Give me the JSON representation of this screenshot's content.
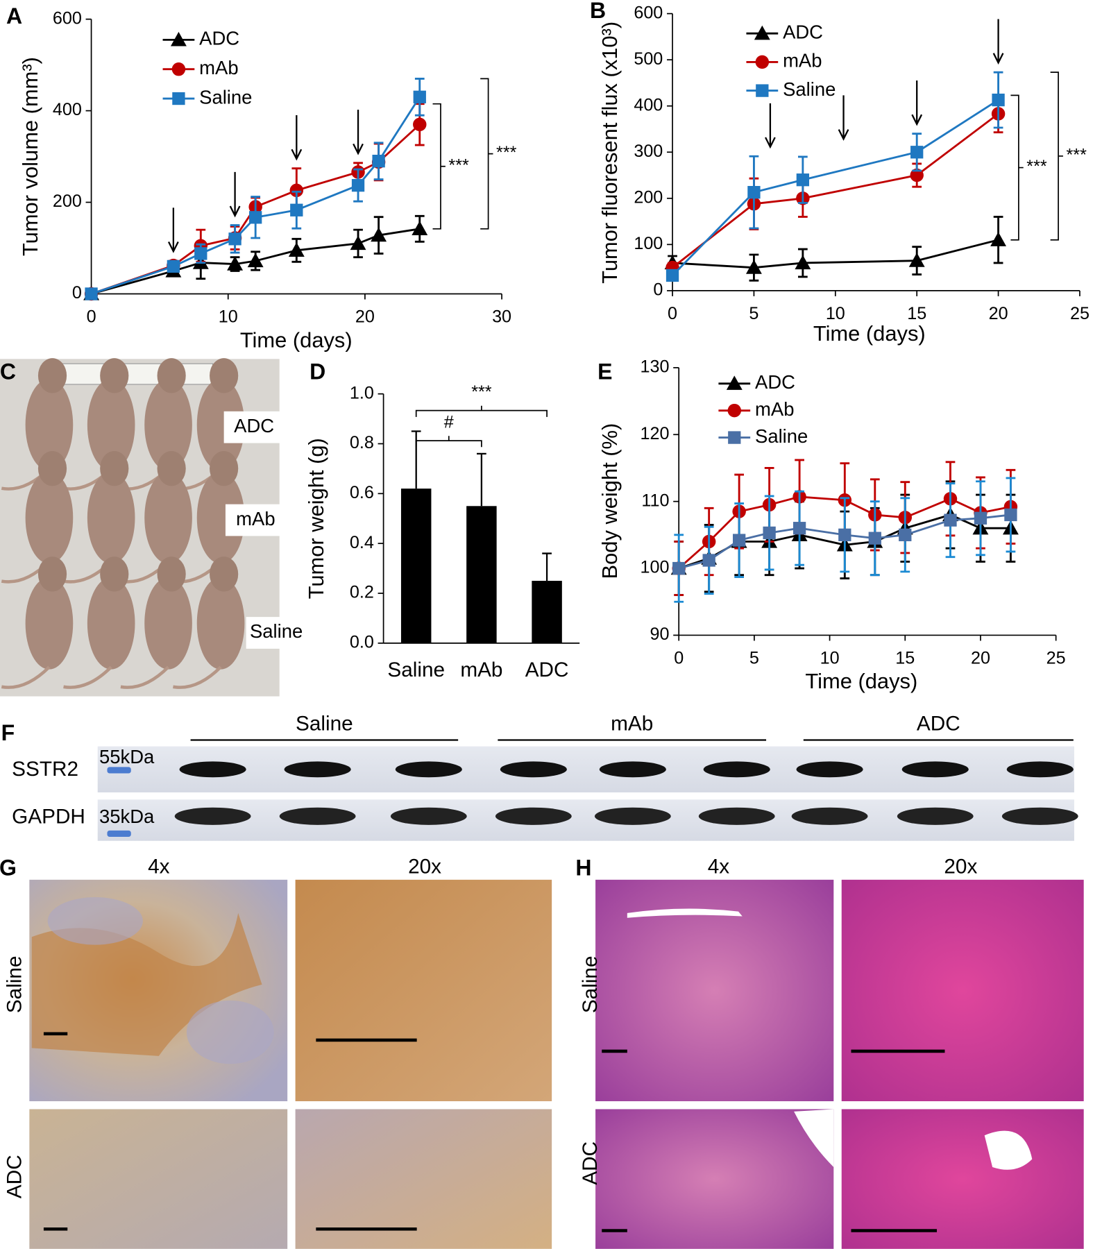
{
  "chart_data": [
    {
      "type": "line",
      "ylabel": "Tumor volume (mm³)",
      "xlabel": "Time (days)",
      "xlim": [
        0,
        30
      ],
      "xticks": [
        0,
        10,
        20,
        30
      ],
      "ylim": [
        0,
        600
      ],
      "yticks": [
        0,
        200,
        400,
        600
      ],
      "legend": "upper left",
      "x": [
        0,
        6,
        8,
        10.5,
        12,
        15,
        19.5,
        21,
        24
      ],
      "series": [
        {
          "name": "ADC",
          "color": "#000000",
          "marker": "triangle",
          "values": [
            0,
            50,
            68,
            65,
            72,
            95,
            110,
            128,
            142
          ],
          "errors": [
            0,
            10,
            35,
            15,
            20,
            25,
            30,
            40,
            28
          ]
        },
        {
          "name": "mAb",
          "color": "#c00000",
          "marker": "circle",
          "values": [
            0,
            62,
            105,
            122,
            190,
            226,
            266,
            288,
            370
          ],
          "errors": [
            0,
            10,
            35,
            25,
            20,
            48,
            20,
            40,
            45
          ]
        },
        {
          "name": "Saline",
          "color": "#1f78c1",
          "marker": "square",
          "values": [
            0,
            60,
            88,
            120,
            167,
            183,
            237,
            290,
            430
          ],
          "errors": [
            0,
            10,
            20,
            30,
            45,
            40,
            35,
            40,
            40
          ]
        }
      ],
      "dose_days": [
        6,
        10.5,
        15,
        19.5
      ],
      "annotations": [
        {
          "text": "***"
        },
        {
          "text": "***"
        }
      ]
    },
    {
      "type": "line",
      "ylabel": "Tumor fluoresent flux (x10³)",
      "xlabel": "Time (days)",
      "xlim": [
        0,
        25
      ],
      "xticks": [
        0,
        5,
        10,
        15,
        20,
        25
      ],
      "ylim": [
        0,
        600
      ],
      "yticks": [
        0,
        100,
        200,
        300,
        400,
        500,
        600
      ],
      "legend": "upper left",
      "x": [
        0,
        5,
        8,
        15,
        20
      ],
      "series": [
        {
          "name": "ADC",
          "color": "#000000",
          "marker": "triangle",
          "values": [
            60,
            50,
            60,
            65,
            110
          ],
          "errors": [
            15,
            28,
            30,
            30,
            50
          ]
        },
        {
          "name": "mAb",
          "color": "#c00000",
          "marker": "circle",
          "values": [
            50,
            188,
            200,
            250,
            383
          ],
          "errors": [
            10,
            55,
            40,
            25,
            40
          ]
        },
        {
          "name": "Saline",
          "color": "#1f78c1",
          "marker": "square",
          "values": [
            33,
            213,
            240,
            300,
            413
          ],
          "errors": [
            10,
            78,
            50,
            40,
            60
          ]
        }
      ],
      "dose_days": [
        6,
        10.5,
        15,
        20
      ],
      "annotations": [
        {
          "text": "***"
        },
        {
          "text": "***"
        }
      ]
    },
    {
      "type": "bar",
      "ylabel": "Tumor weight (g)",
      "categories": [
        "Saline",
        "mAb",
        "ADC"
      ],
      "values": [
        0.62,
        0.55,
        0.25
      ],
      "errors": [
        0.23,
        0.21,
        0.11
      ],
      "color": "#000000",
      "ylim": [
        0,
        1
      ],
      "yticks": [
        {
          "value": 0,
          "label": "0.0"
        },
        0.2,
        0.4,
        0.6,
        0.8,
        {
          "value": 1,
          "label": "1.0"
        }
      ],
      "annotations": [
        {
          "text": "#"
        },
        {
          "text": "***"
        }
      ]
    },
    {
      "type": "line",
      "ylabel": "Body weight (%)",
      "xlabel": "Time (days)",
      "xlim": [
        0,
        25
      ],
      "xticks": [
        0,
        5,
        10,
        15,
        20,
        25
      ],
      "ylim": [
        90,
        130
      ],
      "yticks": [
        90,
        100,
        110,
        120,
        130
      ],
      "legend": "upper left",
      "x": [
        0,
        2,
        4,
        6,
        8,
        11,
        13,
        15,
        18,
        20,
        22
      ],
      "series": [
        {
          "name": "ADC",
          "color": "#000000",
          "marker": "triangle",
          "values": [
            100,
            101.5,
            104,
            104,
            105,
            103.5,
            104,
            106,
            108,
            106,
            106
          ],
          "errors": [
            4,
            5,
            5,
            5,
            5,
            5,
            5,
            5,
            5,
            5,
            5
          ]
        },
        {
          "name": "mAb",
          "color": "#c00000",
          "marker": "circle",
          "values": [
            100,
            104,
            108.5,
            109.5,
            110.7,
            110.2,
            108,
            107.6,
            110.4,
            108.3,
            109.2
          ],
          "errors": [
            4,
            5,
            5.5,
            5.5,
            5.5,
            5.5,
            5.3,
            5.3,
            5.5,
            5.3,
            5.5
          ]
        },
        {
          "name": "Saline",
          "color": "#4a6fa5",
          "error_color": "#1b8ad3",
          "marker": "square",
          "values": [
            100,
            101.2,
            104.2,
            105.3,
            106,
            105,
            104.5,
            105,
            107.2,
            107.5,
            108
          ],
          "errors": [
            5,
            5,
            5.5,
            5.5,
            5.5,
            5.5,
            5.5,
            5.5,
            5.5,
            5.5,
            5.5
          ]
        }
      ]
    }
  ],
  "panel_labels": [
    "A",
    "B",
    "C",
    "D",
    "E",
    "F",
    "G",
    "H"
  ],
  "photo": {
    "labels": [
      "ADC",
      "mAb",
      "Saline"
    ]
  },
  "western_blot": {
    "groups": [
      "Saline",
      "mAb",
      "ADC"
    ],
    "rows": [
      {
        "name": "SSTR2",
        "marker": "55kDa"
      },
      {
        "name": "GAPDH",
        "marker": "35kDa"
      }
    ]
  },
  "ihc": {
    "columns": [
      "4x",
      "20x"
    ],
    "rows": [
      "Saline",
      "ADC"
    ]
  },
  "he": {
    "columns": [
      "4x",
      "20x"
    ],
    "rows": [
      "Saline",
      "ADC"
    ]
  }
}
